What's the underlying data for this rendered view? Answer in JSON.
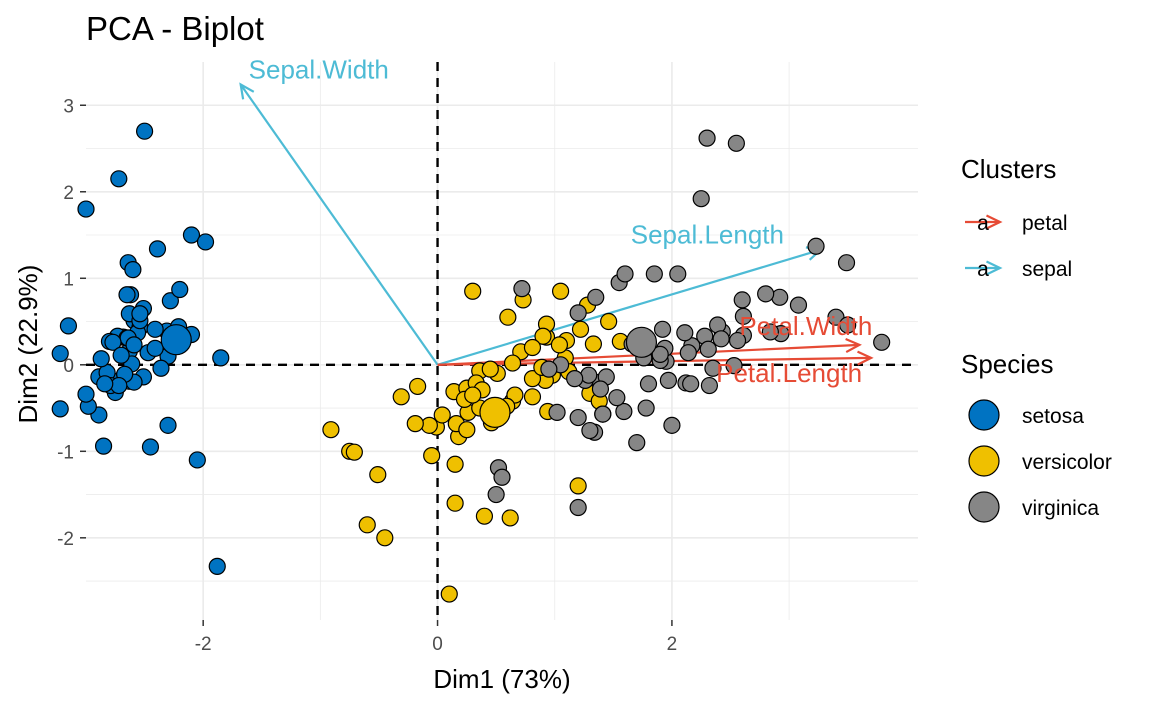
{
  "chart_data": {
    "type": "scatter",
    "title": "PCA - Biplot",
    "xlabel": "Dim1 (73%)",
    "ylabel": "Dim2 (22.9%)",
    "xlim": [
      -3.0,
      4.1
    ],
    "ylim": [
      -2.95,
      3.5
    ],
    "x_ticks": [
      -2,
      0,
      2
    ],
    "x_tick_labels": [
      "-2",
      "0",
      "2"
    ],
    "y_ticks": [
      -2,
      -1,
      0,
      1,
      2,
      3
    ],
    "y_tick_labels": [
      "-2",
      "-1",
      "0",
      "1",
      "2",
      "3"
    ],
    "grid": true,
    "reference_lines": {
      "x": 0,
      "y": 0,
      "style": "dashed"
    },
    "legend_placement": "right",
    "colors": {
      "setosa": "#0073C2",
      "versicolor": "#EFC000",
      "virginica": "#868686",
      "petal": "#E64B35",
      "sepal": "#4DBBD5",
      "background": "#FFFFFF",
      "grid": "#EBEBEB"
    },
    "species_legend_title": "Species",
    "cluster_legend_title": "Clusters",
    "cluster_legend": [
      {
        "name": "petal",
        "glyph": "a"
      },
      {
        "name": "sepal",
        "glyph": "a"
      }
    ],
    "series": [
      {
        "name": "setosa",
        "points": [
          [
            -2.68,
            0.32
          ],
          [
            -2.71,
            -0.18
          ],
          [
            -2.89,
            -0.14
          ],
          [
            -2.75,
            -0.32
          ],
          [
            -2.73,
            0.33
          ],
          [
            -2.28,
            0.74
          ],
          [
            -2.82,
            -0.09
          ],
          [
            -2.63,
            0.16
          ],
          [
            -2.89,
            -0.58
          ],
          [
            -2.67,
            -0.11
          ],
          [
            -2.51,
            0.65
          ],
          [
            -2.61,
            0.01
          ],
          [
            -2.79,
            -0.24
          ],
          [
            -3.22,
            -0.51
          ],
          [
            -2.64,
            1.18
          ],
          [
            -2.39,
            1.34
          ],
          [
            -2.62,
            0.81
          ],
          [
            -2.65,
            0.31
          ],
          [
            -2.2,
            0.87
          ],
          [
            -2.59,
            0.51
          ],
          [
            -2.31,
            0.39
          ],
          [
            -2.54,
            0.43
          ],
          [
            -3.22,
            0.13
          ],
          [
            -2.3,
            0.1
          ],
          [
            -2.36,
            -0.04
          ],
          [
            -2.51,
            -0.14
          ],
          [
            -2.47,
            0.14
          ],
          [
            -2.56,
            0.37
          ],
          [
            -2.64,
            0.31
          ],
          [
            -2.63,
            -0.19
          ],
          [
            -2.59,
            -0.2
          ],
          [
            -2.41,
            0.41
          ],
          [
            -2.65,
            0.81
          ],
          [
            -2.6,
            1.1
          ],
          [
            -2.67,
            -0.11
          ],
          [
            -2.87,
            0.07
          ],
          [
            -2.63,
            0.59
          ],
          [
            -2.8,
            0.27
          ],
          [
            -2.98,
            -0.48
          ],
          [
            -2.59,
            0.23
          ],
          [
            -2.77,
            0.26
          ],
          [
            -2.85,
            -0.94
          ],
          [
            -3.0,
            -0.34
          ],
          [
            -2.41,
            0.19
          ],
          [
            -2.21,
            0.44
          ],
          [
            -2.72,
            -0.24
          ],
          [
            -2.54,
            0.51
          ],
          [
            -2.84,
            -0.22
          ],
          [
            -2.54,
            0.59
          ],
          [
            -2.7,
            0.11
          ],
          [
            -2.3,
            -0.7
          ],
          [
            -2.05,
            -1.1
          ],
          [
            -2.5,
            2.7
          ],
          [
            -1.88,
            -2.33
          ],
          [
            -2.72,
            2.15
          ],
          [
            -3.0,
            1.8
          ],
          [
            -2.45,
            -0.95
          ],
          [
            -2.1,
            1.5
          ],
          [
            -1.98,
            1.42
          ],
          [
            -3.15,
            0.45
          ],
          [
            -1.85,
            0.08
          ],
          [
            -2.1,
            0.35
          ]
        ]
      },
      {
        "name": "versicolor",
        "points": [
          [
            1.28,
            0.69
          ],
          [
            0.93,
            0.32
          ],
          [
            1.46,
            0.5
          ],
          [
            0.18,
            -0.83
          ],
          [
            1.09,
            0.08
          ],
          [
            0.64,
            -0.42
          ],
          [
            1.1,
            0.28
          ],
          [
            -0.75,
            -1.0
          ],
          [
            1.04,
            0.23
          ],
          [
            -0.01,
            -0.72
          ],
          [
            -0.51,
            -1.27
          ],
          [
            0.51,
            -0.1
          ],
          [
            0.26,
            -0.55
          ],
          [
            0.98,
            -0.12
          ],
          [
            -0.17,
            -0.25
          ],
          [
            0.93,
            0.47
          ],
          [
            0.66,
            -0.35
          ],
          [
            0.23,
            -0.33
          ],
          [
            0.94,
            -0.54
          ],
          [
            0.04,
            -0.58
          ],
          [
            1.12,
            -0.08
          ],
          [
            0.36,
            -0.07
          ],
          [
            1.3,
            -0.33
          ],
          [
            0.92,
            -0.18
          ],
          [
            0.71,
            0.15
          ],
          [
            0.9,
            0.33
          ],
          [
            1.33,
            0.24
          ],
          [
            1.56,
            0.27
          ],
          [
            0.81,
            -0.16
          ],
          [
            -0.31,
            -0.37
          ],
          [
            -0.07,
            -0.7
          ],
          [
            -0.19,
            -0.68
          ],
          [
            0.14,
            -0.31
          ],
          [
            1.38,
            -0.42
          ],
          [
            0.59,
            -0.48
          ],
          [
            0.81,
            0.2
          ],
          [
            1.22,
            0.41
          ],
          [
            0.81,
            -0.37
          ],
          [
            0.25,
            -0.27
          ],
          [
            0.16,
            -0.68
          ],
          [
            0.46,
            -0.67
          ],
          [
            0.89,
            -0.03
          ],
          [
            0.23,
            -0.4
          ],
          [
            -0.71,
            -1.01
          ],
          [
            0.36,
            -0.5
          ],
          [
            0.33,
            -0.21
          ],
          [
            0.38,
            -0.29
          ],
          [
            0.64,
            0.02
          ],
          [
            -0.91,
            -0.75
          ],
          [
            0.3,
            -0.35
          ],
          [
            0.1,
            -2.65
          ],
          [
            -0.6,
            -1.85
          ],
          [
            -0.45,
            -2.0
          ],
          [
            0.3,
            0.85
          ],
          [
            0.45,
            -0.05
          ],
          [
            0.73,
            0.75
          ],
          [
            0.6,
            0.55
          ],
          [
            1.05,
            0.85
          ],
          [
            0.62,
            -1.77
          ],
          [
            0.4,
            -1.75
          ],
          [
            0.15,
            -1.6
          ],
          [
            -0.05,
            -1.05
          ],
          [
            0.15,
            -1.15
          ],
          [
            0.25,
            -0.75
          ],
          [
            1.2,
            -1.4
          ]
        ]
      },
      {
        "name": "virginica",
        "points": [
          [
            2.53,
            -0.01
          ],
          [
            1.41,
            -0.57
          ],
          [
            2.61,
            0.34
          ],
          [
            1.97,
            -0.18
          ],
          [
            2.35,
            -0.04
          ],
          [
            3.4,
            0.55
          ],
          [
            0.52,
            -1.19
          ],
          [
            2.93,
            0.36
          ],
          [
            2.32,
            -0.24
          ],
          [
            2.92,
            0.78
          ],
          [
            1.66,
            0.24
          ],
          [
            1.8,
            -0.22
          ],
          [
            2.17,
            0.22
          ],
          [
            1.34,
            -0.78
          ],
          [
            1.59,
            -0.54
          ],
          [
            1.9,
            0.12
          ],
          [
            1.95,
            0.04
          ],
          [
            3.49,
            1.18
          ],
          [
            3.79,
            0.26
          ],
          [
            1.3,
            -0.76
          ],
          [
            2.43,
            0.38
          ],
          [
            1.2,
            -0.61
          ],
          [
            3.5,
            0.46
          ],
          [
            1.39,
            -0.2
          ],
          [
            2.28,
            0.33
          ],
          [
            2.61,
            0.56
          ],
          [
            1.26,
            -0.18
          ],
          [
            1.29,
            -0.12
          ],
          [
            2.12,
            -0.21
          ],
          [
            2.39,
            0.46
          ],
          [
            2.84,
            0.38
          ],
          [
            3.23,
            1.37
          ],
          [
            2.16,
            -0.22
          ],
          [
            1.44,
            -0.14
          ],
          [
            1.78,
            -0.5
          ],
          [
            3.08,
            0.69
          ],
          [
            2.14,
            0.14
          ],
          [
            1.9,
            0.05
          ],
          [
            1.17,
            -0.16
          ],
          [
            2.11,
            0.37
          ],
          [
            2.31,
            0.18
          ],
          [
            1.92,
            0.41
          ],
          [
            1.41,
            -0.57
          ],
          [
            2.56,
            0.28
          ],
          [
            2.42,
            0.3
          ],
          [
            1.94,
            0.19
          ],
          [
            1.53,
            -0.38
          ],
          [
            1.76,
            0.08
          ],
          [
            1.9,
            0.12
          ],
          [
            1.39,
            -0.28
          ],
          [
            2.3,
            2.62
          ],
          [
            2.55,
            2.56
          ],
          [
            2.25,
            1.92
          ],
          [
            1.85,
            1.05
          ],
          [
            2.05,
            1.05
          ],
          [
            1.55,
            0.95
          ],
          [
            1.35,
            0.78
          ],
          [
            1.2,
            0.6
          ],
          [
            2.0,
            -0.7
          ],
          [
            0.5,
            -1.5
          ],
          [
            1.2,
            -1.65
          ],
          [
            1.02,
            -0.55
          ],
          [
            0.55,
            -1.3
          ],
          [
            1.7,
            -0.9
          ],
          [
            1.6,
            1.05
          ],
          [
            2.8,
            0.82
          ],
          [
            2.6,
            0.75
          ],
          [
            0.72,
            0.88
          ],
          [
            1.05,
            0.0
          ],
          [
            0.95,
            -0.05
          ]
        ]
      }
    ],
    "centroids": [
      {
        "name": "setosa",
        "x": -2.23,
        "y": 0.29
      },
      {
        "name": "versicolor",
        "x": 0.49,
        "y": -0.55
      },
      {
        "name": "virginica",
        "x": 1.74,
        "y": 0.26
      }
    ],
    "variables": [
      {
        "name": "Sepal.Width",
        "cluster": "sepal",
        "x": -1.68,
        "y": 3.24
      },
      {
        "name": "Sepal.Length",
        "cluster": "sepal",
        "x": 3.27,
        "y": 1.33
      },
      {
        "name": "Petal.Width",
        "cluster": "petal",
        "x": 3.6,
        "y": 0.23
      },
      {
        "name": "Petal.Length",
        "cluster": "petal",
        "x": 3.7,
        "y": 0.08
      }
    ]
  }
}
